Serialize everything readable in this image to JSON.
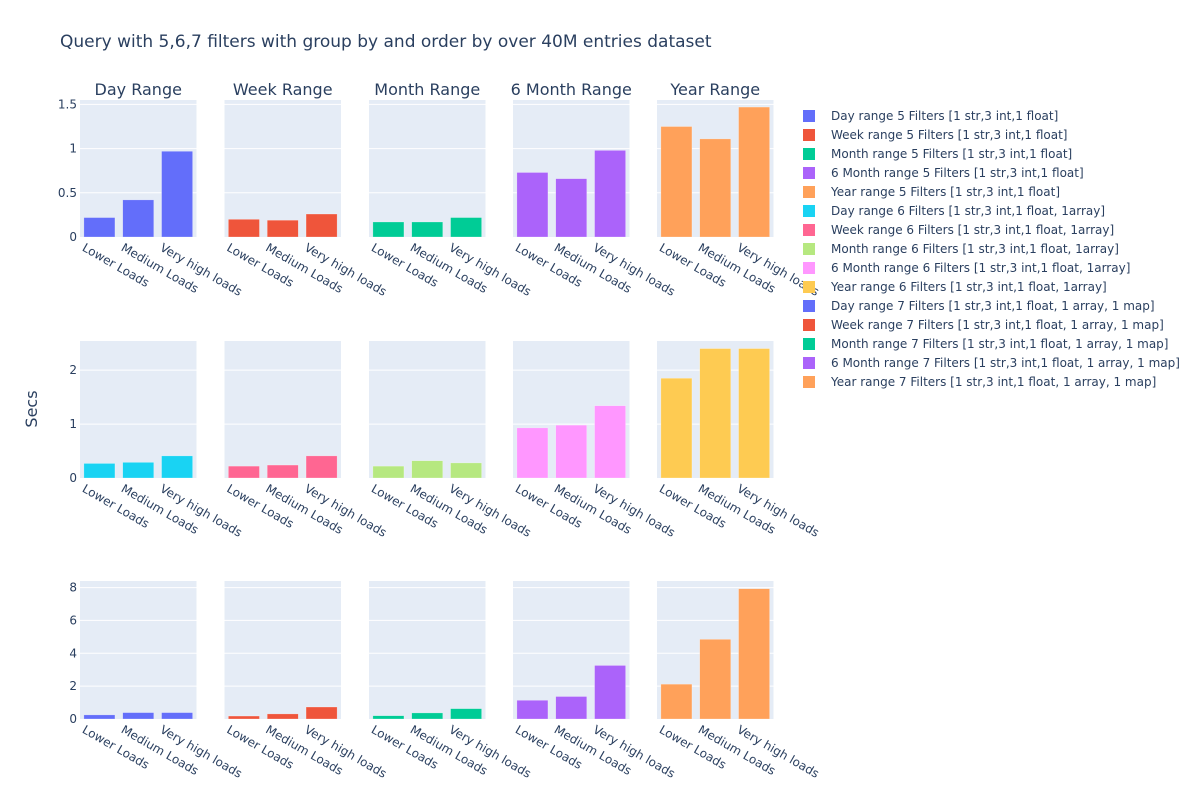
{
  "chart_data": {
    "type": "bar",
    "title": "Query with 5,6,7 filters with group by and order by over 40M entries dataset",
    "ylabel": "Secs",
    "xlabel": "",
    "grid": true,
    "legend_position": "right",
    "column_titles": [
      "Day Range",
      "Week Range",
      "Month Range",
      "6 Month Range",
      "Year Range"
    ],
    "categories": [
      "Lower Loads",
      "Medium Loads",
      "Very high loads"
    ],
    "rows": [
      {
        "filters": 5,
        "ylim": [
          0,
          1.55
        ],
        "yticks": [
          0,
          0.5,
          1,
          1.5
        ],
        "ytick_labels": [
          "0",
          "0.5",
          "1",
          "1.5"
        ]
      },
      {
        "filters": 6,
        "ylim": [
          0,
          2.54
        ],
        "yticks": [
          0,
          1,
          2
        ],
        "ytick_labels": [
          "0",
          "1",
          "2"
        ]
      },
      {
        "filters": 7,
        "ylim": [
          0,
          8.4
        ],
        "yticks": [
          0,
          2,
          4,
          6,
          8
        ],
        "ytick_labels": [
          "0",
          "2",
          "4",
          "6",
          "8"
        ]
      }
    ],
    "series": [
      {
        "name": "Day range 5 Filters [1 str,3 int,1 float]",
        "row": 0,
        "col": 0,
        "color": "#636efa",
        "values": [
          0.22,
          0.42,
          0.97
        ]
      },
      {
        "name": "Week range 5 Filters [1 str,3 int,1 float]",
        "row": 0,
        "col": 1,
        "color": "#ef553b",
        "values": [
          0.2,
          0.19,
          0.26
        ]
      },
      {
        "name": "Month range 5 Filters [1 str,3 int,1 float]",
        "row": 0,
        "col": 2,
        "color": "#00cc96",
        "values": [
          0.17,
          0.17,
          0.22
        ]
      },
      {
        "name": "6 Month range 5 Filters [1 str,3 int,1 float]",
        "row": 0,
        "col": 3,
        "color": "#ab63fa",
        "values": [
          0.73,
          0.66,
          0.98
        ]
      },
      {
        "name": "Year range 5 Filters [1 str,3 int,1 float]",
        "row": 0,
        "col": 4,
        "color": "#ffa15a",
        "values": [
          1.25,
          1.11,
          1.47
        ]
      },
      {
        "name": "Day range 6 Filters [1 str,3 int,1 float, 1array]",
        "row": 1,
        "col": 0,
        "color": "#19d3f3",
        "values": [
          0.27,
          0.29,
          0.41
        ]
      },
      {
        "name": "Week range 6 Filters [1 str,3 int,1 float, 1array]",
        "row": 1,
        "col": 1,
        "color": "#ff6692",
        "values": [
          0.22,
          0.24,
          0.41
        ]
      },
      {
        "name": "Month range 6 Filters [1 str,3 int,1 float, 1array]",
        "row": 1,
        "col": 2,
        "color": "#b6e880",
        "values": [
          0.22,
          0.32,
          0.28
        ]
      },
      {
        "name": "6 Month range 6 Filters [1 str,3 int,1 float, 1array]",
        "row": 1,
        "col": 3,
        "color": "#ff97ff",
        "values": [
          0.93,
          0.98,
          1.34
        ]
      },
      {
        "name": "Year range 6 Filters [1 str,3 int,1 float, 1array]",
        "row": 1,
        "col": 4,
        "color": "#fecb52",
        "values": [
          1.85,
          2.4,
          2.4
        ]
      },
      {
        "name": "Day range 7 Filters [1 str,3 int,1 float, 1 array, 1 map]",
        "row": 2,
        "col": 0,
        "color": "#636efa",
        "values": [
          0.25,
          0.39,
          0.39
        ]
      },
      {
        "name": "Week range 7 Filters [1 str,3 int,1 float, 1 array, 1 map]",
        "row": 2,
        "col": 1,
        "color": "#ef553b",
        "values": [
          0.18,
          0.31,
          0.73
        ]
      },
      {
        "name": "Month range 7 Filters [1 str,3 int,1 float, 1 array, 1 map]",
        "row": 2,
        "col": 2,
        "color": "#00cc96",
        "values": [
          0.2,
          0.37,
          0.63
        ]
      },
      {
        "name": "6 Month range 7 Filters [1 str,3 int,1 float, 1 array, 1 map]",
        "row": 2,
        "col": 3,
        "color": "#ab63fa",
        "values": [
          1.14,
          1.37,
          3.26
        ]
      },
      {
        "name": "Year range 7 Filters [1 str,3 int,1 float, 1 array, 1 map]",
        "row": 2,
        "col": 4,
        "color": "#ffa15a",
        "values": [
          2.12,
          4.85,
          7.93
        ]
      }
    ]
  }
}
